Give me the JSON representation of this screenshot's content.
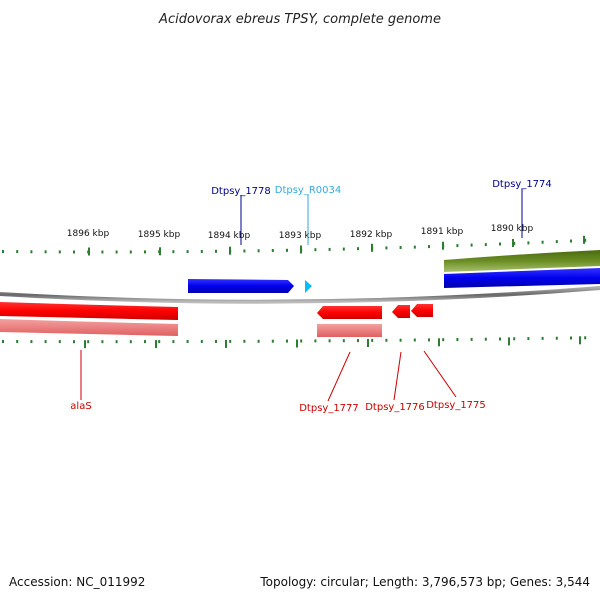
{
  "title": "Acidovorax ebreus TPSY, complete genome",
  "accession": "Accession: NC_011992",
  "summary": "Topology: circular; Length: 3,796,573 bp; Genes: 3,544",
  "scale_labels": [
    "1896 kbp",
    "1895 kbp",
    "1894 kbp",
    "1893 kbp",
    "1892 kbp",
    "1891 kbp",
    "1890 kbp"
  ],
  "genes": [
    {
      "label": "Dtpsy_1778",
      "strand": "+",
      "color": "#0000cc",
      "label_color": "#00008b"
    },
    {
      "label": "Dtpsy_R0034",
      "strand": "+",
      "color": "#00bfff",
      "label_color": "#33aadd"
    },
    {
      "label": "Dtpsy_1774",
      "strand": "+",
      "color": "#0000dd",
      "label_color": "#00008b"
    },
    {
      "label": "alaS",
      "strand": "-",
      "color": "#ff0000",
      "label_color": "#cc0000"
    },
    {
      "label": "Dtpsy_1777",
      "strand": "-",
      "color": "#ff0000",
      "label_color": "#cc0000"
    },
    {
      "label": "Dtpsy_1776",
      "strand": "-",
      "color": "#ff0000",
      "label_color": "#cc0000"
    },
    {
      "label": "Dtpsy_1775",
      "strand": "-",
      "color": "#ff0000",
      "label_color": "#cc0000"
    }
  ],
  "colors": {
    "forward_cds": "#0000ee",
    "forward_rna": "#00bfff",
    "reverse_cds": "#ff0000",
    "reverse_shade": "#f08080",
    "forward_shade": "#6b8e23",
    "backbone": "#888888",
    "ticks": "#2e7d32"
  }
}
